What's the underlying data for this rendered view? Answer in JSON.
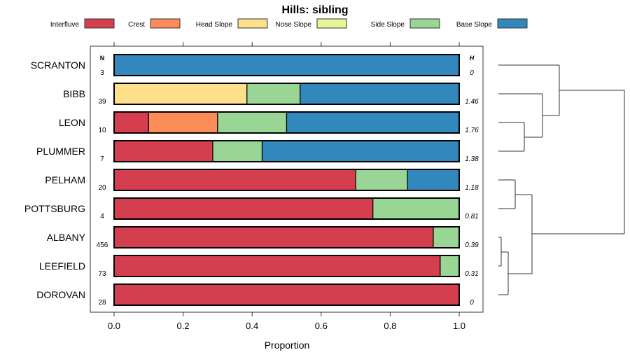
{
  "chart_data": {
    "type": "bar",
    "orientation": "horizontal",
    "stacked": true,
    "title": "Hills: sibling",
    "xlabel": "Proportion",
    "ylabel": "",
    "xlim": [
      0,
      1
    ],
    "xticks": [
      "0.0",
      "0.2",
      "0.4",
      "0.6",
      "0.8",
      "1.0"
    ],
    "xtick_values": [
      0,
      0.2,
      0.4,
      0.6,
      0.8,
      1.0
    ],
    "n_header": "N",
    "h_header": "H",
    "legend_placement": "top",
    "legend": [
      {
        "name": "Interfluve",
        "color": "#D53E4F"
      },
      {
        "name": "Crest",
        "color": "#FC8D59"
      },
      {
        "name": "Head Slope",
        "color": "#FEE08B"
      },
      {
        "name": "Nose Slope",
        "color": "#E6F598"
      },
      {
        "name": "Side Slope",
        "color": "#99D594"
      },
      {
        "name": "Base Slope",
        "color": "#3288BD"
      }
    ],
    "categories": [
      "SCRANTON",
      "BIBB",
      "LEON",
      "PLUMMER",
      "PELHAM",
      "POTTSBURG",
      "ALBANY",
      "LEEFIELD",
      "DOROVAN"
    ],
    "N": [
      "3",
      "39",
      "10",
      "7",
      "20",
      "4",
      "456",
      "73",
      "28"
    ],
    "H": [
      "0",
      "1.46",
      "1.76",
      "1.38",
      "1.18",
      "0.81",
      "0.39",
      "0.31",
      "0"
    ],
    "series": [
      {
        "name": "Interfluve",
        "values": [
          0,
          0,
          0.1,
          0.286,
          0.7,
          0.75,
          0.925,
          0.945,
          1.0
        ]
      },
      {
        "name": "Crest",
        "values": [
          0,
          0,
          0.2,
          0,
          0,
          0,
          0,
          0,
          0
        ]
      },
      {
        "name": "Head Slope",
        "values": [
          0,
          0.385,
          0,
          0,
          0,
          0,
          0,
          0,
          0
        ]
      },
      {
        "name": "Nose Slope",
        "values": [
          0,
          0,
          0,
          0,
          0,
          0,
          0,
          0,
          0
        ]
      },
      {
        "name": "Side Slope",
        "values": [
          0,
          0.154,
          0.2,
          0.143,
          0.15,
          0.25,
          0.075,
          0.055,
          0
        ]
      },
      {
        "name": "Base Slope",
        "values": [
          1.0,
          0.461,
          0.5,
          0.571,
          0.15,
          0,
          0,
          0,
          0
        ]
      }
    ],
    "grid": false,
    "dendrogram": "right"
  }
}
